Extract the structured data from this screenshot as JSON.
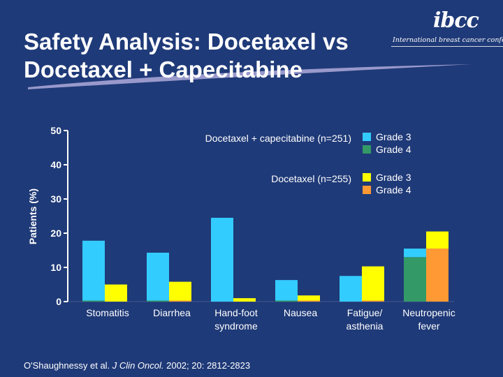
{
  "slide": {
    "title_line1": "Safety Analysis: Docetaxel vs",
    "title_line2": "Docetaxel + Capecitabine",
    "logo_mark": "ibcc",
    "logo_text": "International breast cancer conference",
    "citation_authors": "O'Shaughnessy et al. ",
    "citation_journal": "J Clin Oncol.",
    "citation_rest": " 2002; 20: 2812-2823"
  },
  "colors": {
    "background": "#1f3a78",
    "dc_grade3": "#33ccff",
    "dc_grade4": "#339966",
    "d_grade3": "#ffff00",
    "d_grade4": "#ff9933",
    "swoosh": "#9999cc"
  },
  "chart_data": {
    "type": "bar",
    "ylabel": "Patients (%)",
    "ylim": [
      0,
      50
    ],
    "yticks": [
      0,
      10,
      20,
      30,
      40,
      50
    ],
    "categories": [
      [
        "Stomatitis"
      ],
      [
        "Diarrhea"
      ],
      [
        "Hand-foot",
        "syndrome"
      ],
      [
        "Nausea"
      ],
      [
        "Fatigue/",
        "asthenia"
      ],
      [
        "Neutropenic",
        "fever"
      ]
    ],
    "legend": {
      "dc_label": "Docetaxel + capecitabine (n=251)",
      "d_label": "Docetaxel (n=255)",
      "grade3": "Grade 3",
      "grade4": "Grade 4"
    },
    "groups": [
      {
        "name": "Docetaxel + capecitabine (n=251)",
        "series": [
          {
            "name": "Grade 3",
            "values": [
              17.5,
              14,
              24.5,
              6,
              7.5,
              2.5
            ]
          },
          {
            "name": "Grade 4",
            "values": [
              0.3,
              0.3,
              0,
              0.3,
              0,
              13
            ]
          }
        ]
      },
      {
        "name": "Docetaxel (n=255)",
        "series": [
          {
            "name": "Grade 3",
            "values": [
              5,
              5.5,
              1,
              1.5,
              10,
              5
            ]
          },
          {
            "name": "Grade 4",
            "values": [
              0,
              0.3,
              0,
              0.3,
              0.3,
              15.5
            ]
          }
        ]
      }
    ]
  }
}
